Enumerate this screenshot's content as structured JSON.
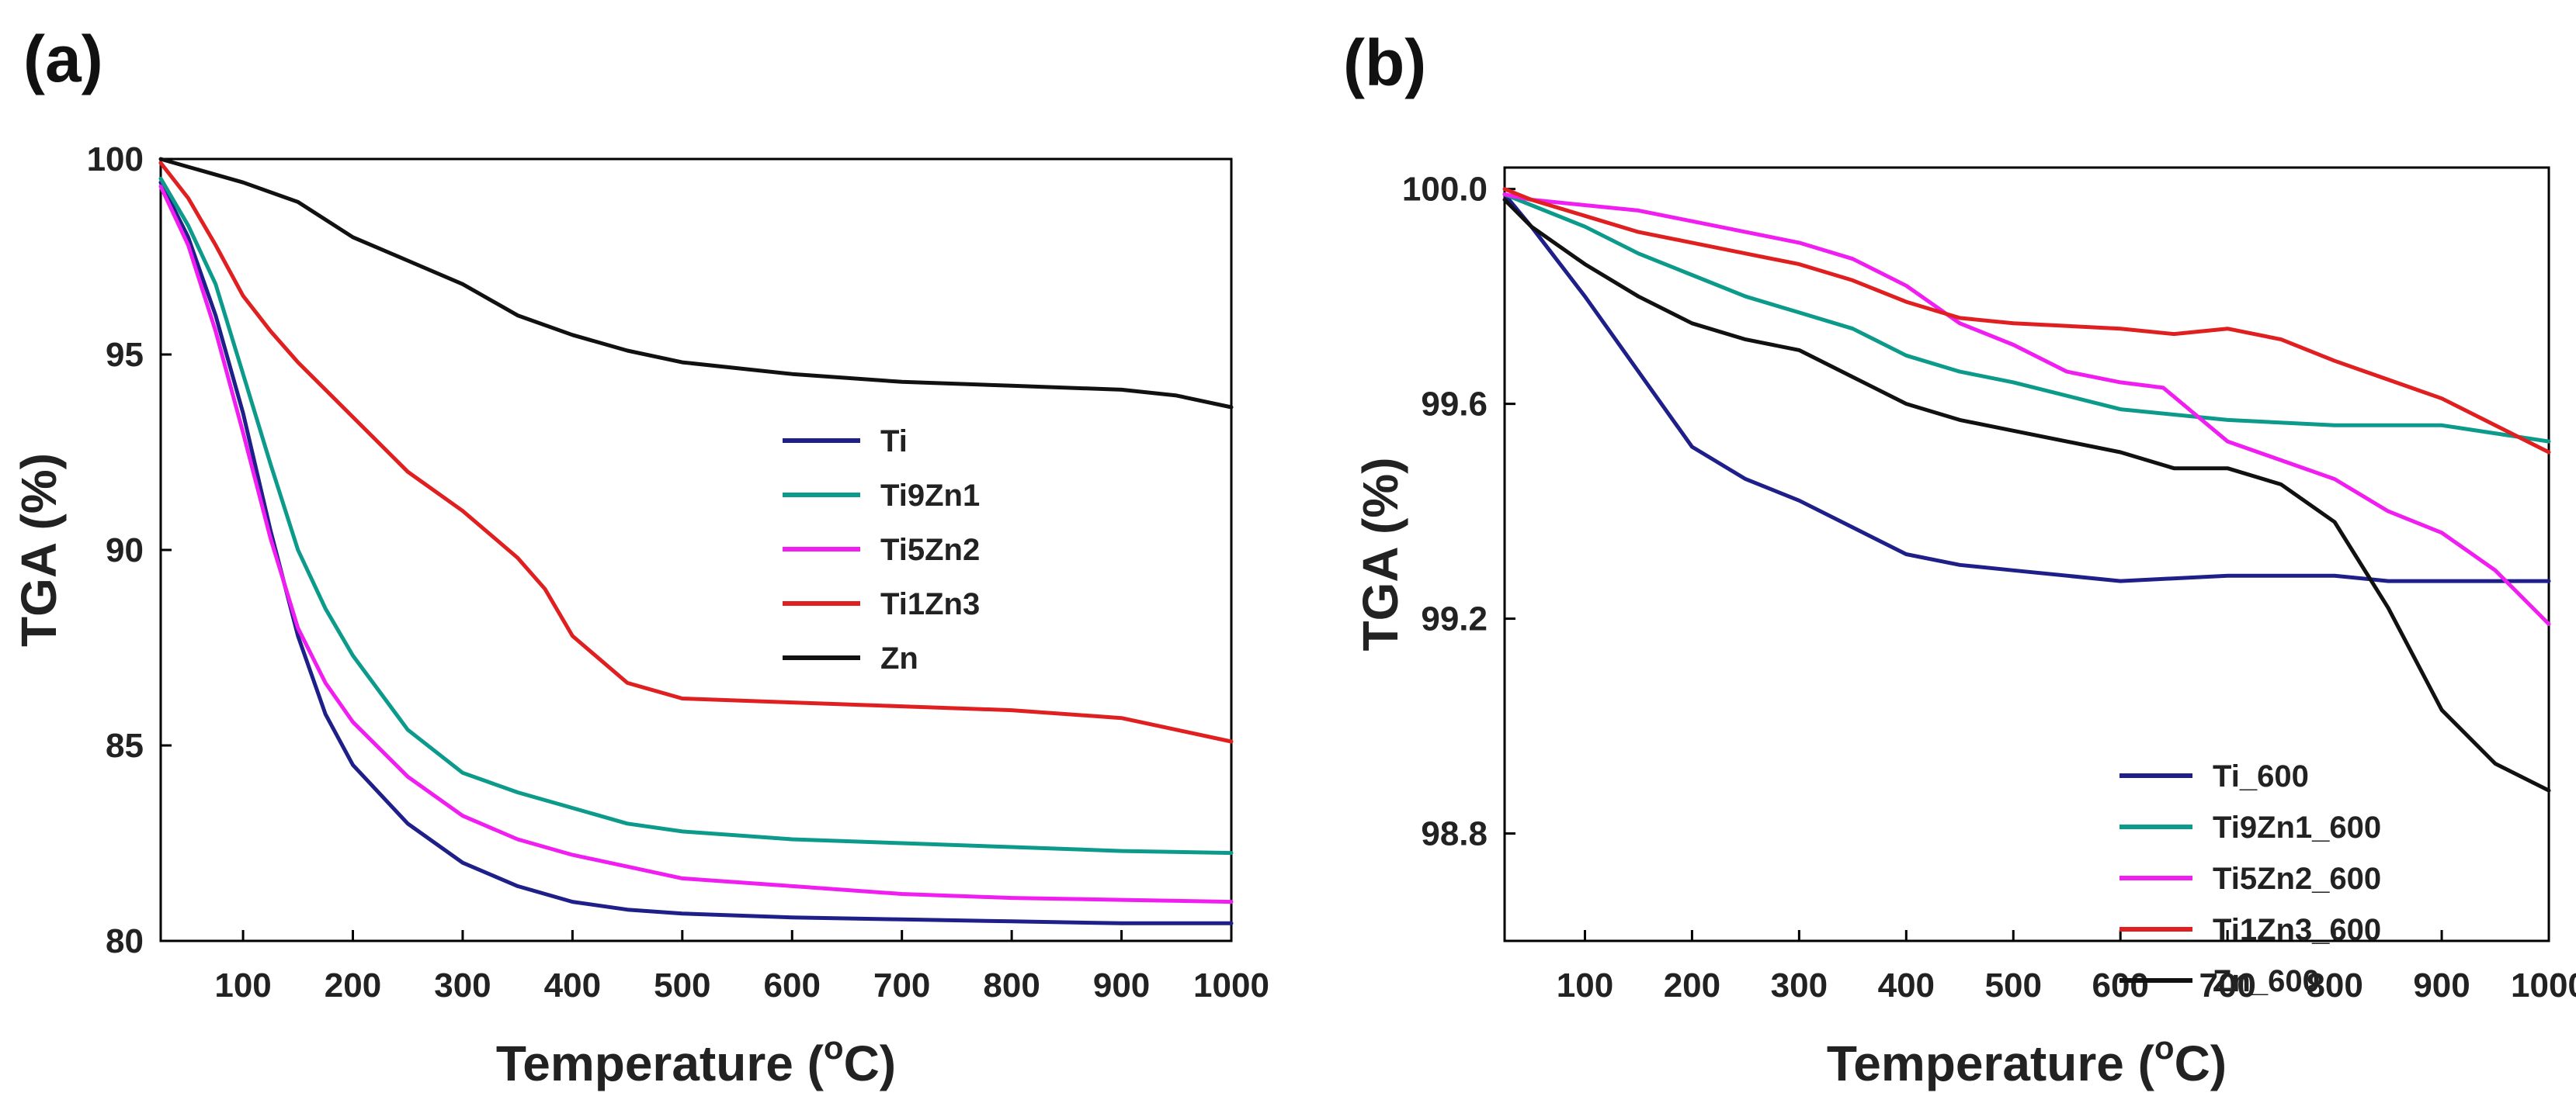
{
  "chart_data": [
    {
      "type": "line",
      "panel_label": "(a)",
      "xlabel": "Temperature (",
      "xlabel_degree": "o",
      "xlabel_unit": "C)",
      "ylabel": "TGA (%)",
      "xlim": [
        25,
        1000
      ],
      "ylim": [
        80,
        100
      ],
      "xticks": [
        100,
        200,
        300,
        400,
        500,
        600,
        700,
        800,
        900,
        1000
      ],
      "xtick_labels": [
        "100",
        "200",
        "300",
        "400",
        "500",
        "600",
        "700",
        "800",
        "900",
        "1000"
      ],
      "yticks": [
        80,
        85,
        90,
        95,
        100
      ],
      "ytick_labels": [
        "80",
        "85",
        "90",
        "95",
        "100"
      ],
      "grid": false,
      "legend_position": "center-right",
      "series": [
        {
          "name": "Ti",
          "color": "#1f1f8a",
          "points": [
            [
              25,
              99.4
            ],
            [
              50,
              98.0
            ],
            [
              75,
              96.0
            ],
            [
              100,
              93.5
            ],
            [
              125,
              90.5
            ],
            [
              150,
              87.8
            ],
            [
              175,
              85.8
            ],
            [
              200,
              84.5
            ],
            [
              250,
              83.0
            ],
            [
              300,
              82.0
            ],
            [
              350,
              81.4
            ],
            [
              400,
              81.0
            ],
            [
              450,
              80.8
            ],
            [
              500,
              80.7
            ],
            [
              600,
              80.6
            ],
            [
              700,
              80.55
            ],
            [
              800,
              80.5
            ],
            [
              900,
              80.45
            ],
            [
              1000,
              80.45
            ]
          ]
        },
        {
          "name": "Ti9Zn1",
          "color": "#0c9a8a",
          "points": [
            [
              25,
              99.5
            ],
            [
              50,
              98.3
            ],
            [
              75,
              96.8
            ],
            [
              100,
              94.5
            ],
            [
              125,
              92.2
            ],
            [
              150,
              90.0
            ],
            [
              175,
              88.5
            ],
            [
              200,
              87.3
            ],
            [
              250,
              85.4
            ],
            [
              300,
              84.3
            ],
            [
              350,
              83.8
            ],
            [
              400,
              83.4
            ],
            [
              450,
              83.0
            ],
            [
              500,
              82.8
            ],
            [
              600,
              82.6
            ],
            [
              700,
              82.5
            ],
            [
              800,
              82.4
            ],
            [
              900,
              82.3
            ],
            [
              1000,
              82.25
            ]
          ]
        },
        {
          "name": "Ti5Zn2",
          "color": "#f01ef0",
          "points": [
            [
              25,
              99.3
            ],
            [
              50,
              97.8
            ],
            [
              75,
              95.6
            ],
            [
              100,
              93.0
            ],
            [
              125,
              90.3
            ],
            [
              150,
              88.0
            ],
            [
              175,
              86.6
            ],
            [
              200,
              85.6
            ],
            [
              250,
              84.2
            ],
            [
              300,
              83.2
            ],
            [
              350,
              82.6
            ],
            [
              400,
              82.2
            ],
            [
              450,
              81.9
            ],
            [
              500,
              81.6
            ],
            [
              600,
              81.4
            ],
            [
              700,
              81.2
            ],
            [
              800,
              81.1
            ],
            [
              900,
              81.05
            ],
            [
              1000,
              81.0
            ]
          ]
        },
        {
          "name": "Ti1Zn3",
          "color": "#e02020",
          "points": [
            [
              25,
              99.9
            ],
            [
              50,
              99.0
            ],
            [
              75,
              97.8
            ],
            [
              100,
              96.5
            ],
            [
              125,
              95.6
            ],
            [
              150,
              94.8
            ],
            [
              200,
              93.4
            ],
            [
              250,
              92.0
            ],
            [
              300,
              91.0
            ],
            [
              350,
              89.8
            ],
            [
              375,
              89.0
            ],
            [
              400,
              87.8
            ],
            [
              450,
              86.6
            ],
            [
              500,
              86.2
            ],
            [
              600,
              86.1
            ],
            [
              700,
              86.0
            ],
            [
              800,
              85.9
            ],
            [
              900,
              85.7
            ],
            [
              950,
              85.4
            ],
            [
              1000,
              85.1
            ]
          ]
        },
        {
          "name": "Zn",
          "color": "#111111",
          "points": [
            [
              25,
              100.0
            ],
            [
              50,
              99.8
            ],
            [
              100,
              99.4
            ],
            [
              150,
              98.9
            ],
            [
              200,
              98.0
            ],
            [
              250,
              97.4
            ],
            [
              300,
              96.8
            ],
            [
              350,
              96.0
            ],
            [
              400,
              95.5
            ],
            [
              450,
              95.1
            ],
            [
              500,
              94.8
            ],
            [
              600,
              94.5
            ],
            [
              700,
              94.3
            ],
            [
              800,
              94.2
            ],
            [
              900,
              94.1
            ],
            [
              950,
              93.95
            ],
            [
              1000,
              93.65
            ]
          ]
        }
      ]
    },
    {
      "type": "line",
      "panel_label": "(b)",
      "xlabel": "Temperature (",
      "xlabel_degree": "o",
      "xlabel_unit": "C)",
      "ylabel": "TGA (%)",
      "xlim": [
        25,
        1000
      ],
      "ylim": [
        98.6,
        100.04
      ],
      "xticks": [
        100,
        200,
        300,
        400,
        500,
        600,
        700,
        800,
        900,
        1000
      ],
      "xtick_labels": [
        "100",
        "200",
        "300",
        "400",
        "500",
        "600",
        "700",
        "800",
        "900",
        "1000"
      ],
      "yticks": [
        98.8,
        99.2,
        99.6,
        100.0
      ],
      "ytick_labels": [
        "98.8",
        "99.2",
        "99.6",
        "100.0"
      ],
      "grid": false,
      "legend_position": "bottom-right",
      "series": [
        {
          "name": "Ti_600",
          "color": "#1f1f8a",
          "points": [
            [
              25,
              99.99
            ],
            [
              50,
              99.93
            ],
            [
              100,
              99.8
            ],
            [
              150,
              99.66
            ],
            [
              200,
              99.52
            ],
            [
              250,
              99.46
            ],
            [
              300,
              99.42
            ],
            [
              350,
              99.37
            ],
            [
              400,
              99.32
            ],
            [
              450,
              99.3
            ],
            [
              500,
              99.29
            ],
            [
              600,
              99.27
            ],
            [
              700,
              99.28
            ],
            [
              800,
              99.28
            ],
            [
              850,
              99.27
            ],
            [
              900,
              99.27
            ],
            [
              1000,
              99.27
            ]
          ]
        },
        {
          "name": "Ti9Zn1_600",
          "color": "#0c9a8a",
          "points": [
            [
              25,
              99.99
            ],
            [
              50,
              99.97
            ],
            [
              100,
              99.93
            ],
            [
              150,
              99.88
            ],
            [
              200,
              99.84
            ],
            [
              250,
              99.8
            ],
            [
              300,
              99.77
            ],
            [
              350,
              99.74
            ],
            [
              400,
              99.69
            ],
            [
              450,
              99.66
            ],
            [
              500,
              99.64
            ],
            [
              600,
              99.59
            ],
            [
              700,
              99.57
            ],
            [
              800,
              99.56
            ],
            [
              900,
              99.56
            ],
            [
              1000,
              99.53
            ]
          ]
        },
        {
          "name": "Ti5Zn2_600",
          "color": "#f01ef0",
          "points": [
            [
              25,
              99.99
            ],
            [
              50,
              99.98
            ],
            [
              100,
              99.97
            ],
            [
              150,
              99.96
            ],
            [
              200,
              99.94
            ],
            [
              250,
              99.92
            ],
            [
              300,
              99.9
            ],
            [
              350,
              99.87
            ],
            [
              400,
              99.82
            ],
            [
              450,
              99.75
            ],
            [
              500,
              99.71
            ],
            [
              550,
              99.66
            ],
            [
              600,
              99.64
            ],
            [
              640,
              99.63
            ],
            [
              700,
              99.53
            ],
            [
              800,
              99.46
            ],
            [
              850,
              99.4
            ],
            [
              900,
              99.36
            ],
            [
              950,
              99.29
            ],
            [
              1000,
              99.19
            ]
          ]
        },
        {
          "name": "Ti1Zn3_600",
          "color": "#e02020",
          "points": [
            [
              25,
              100.0
            ],
            [
              50,
              99.98
            ],
            [
              100,
              99.95
            ],
            [
              150,
              99.92
            ],
            [
              200,
              99.9
            ],
            [
              250,
              99.88
            ],
            [
              300,
              99.86
            ],
            [
              350,
              99.83
            ],
            [
              400,
              99.79
            ],
            [
              450,
              99.76
            ],
            [
              500,
              99.75
            ],
            [
              600,
              99.74
            ],
            [
              650,
              99.73
            ],
            [
              700,
              99.74
            ],
            [
              750,
              99.72
            ],
            [
              800,
              99.68
            ],
            [
              900,
              99.61
            ],
            [
              1000,
              99.51
            ]
          ]
        },
        {
          "name": "Zn_600",
          "color": "#111111",
          "points": [
            [
              25,
              99.98
            ],
            [
              50,
              99.93
            ],
            [
              100,
              99.86
            ],
            [
              150,
              99.8
            ],
            [
              200,
              99.75
            ],
            [
              250,
              99.72
            ],
            [
              300,
              99.7
            ],
            [
              350,
              99.65
            ],
            [
              400,
              99.6
            ],
            [
              450,
              99.57
            ],
            [
              500,
              99.55
            ],
            [
              600,
              99.51
            ],
            [
              650,
              99.48
            ],
            [
              700,
              99.48
            ],
            [
              750,
              99.45
            ],
            [
              800,
              99.38
            ],
            [
              850,
              99.22
            ],
            [
              900,
              99.03
            ],
            [
              950,
              98.93
            ],
            [
              1000,
              98.88
            ]
          ]
        }
      ]
    }
  ]
}
